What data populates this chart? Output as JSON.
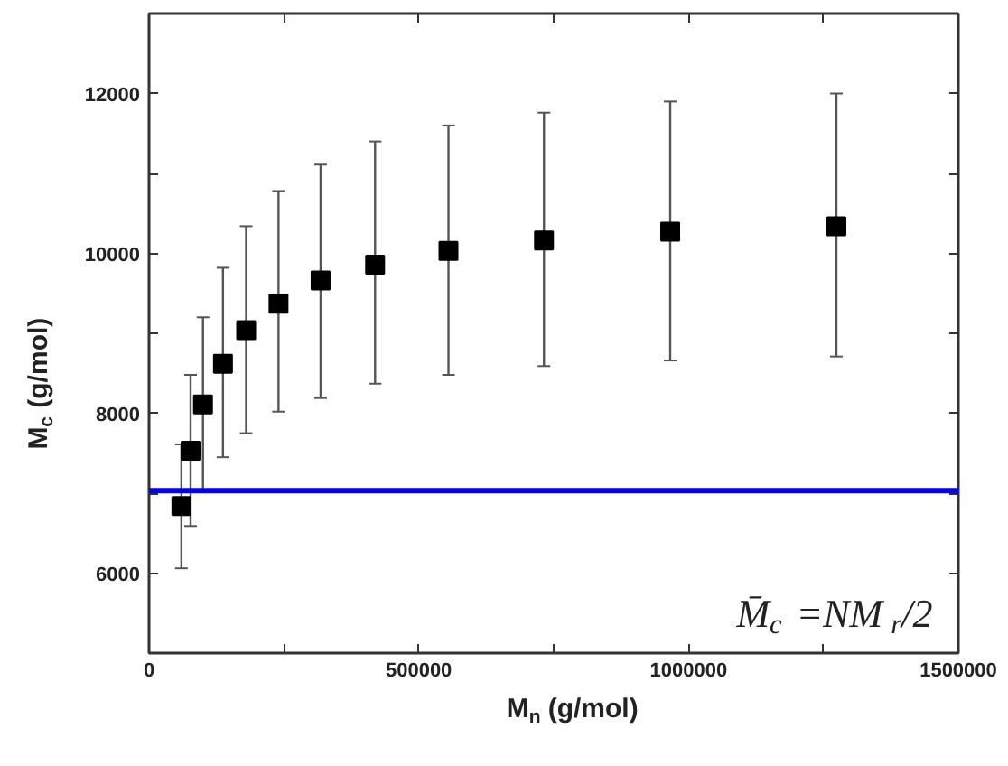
{
  "chart_data": {
    "type": "scatter",
    "xlabel": "M$_{n}$ (g/mol)",
    "ylabel": "M$_{c}$ (g/mol)",
    "x": [
      60000,
      77000,
      100000,
      137000,
      180000,
      240000,
      318000,
      419000,
      555000,
      732000,
      966000,
      1274000
    ],
    "values": [
      6840,
      7530,
      8110,
      8620,
      9040,
      9370,
      9660,
      9860,
      10030,
      10160,
      10270,
      10340
    ],
    "errors": [
      [
        6060,
        7610
      ],
      [
        6590,
        8480
      ],
      [
        7040,
        9200
      ],
      [
        7450,
        9820
      ],
      [
        7750,
        10340
      ],
      [
        8020,
        10780
      ],
      [
        8190,
        11110
      ],
      [
        8370,
        11400
      ],
      [
        8480,
        11600
      ],
      [
        8590,
        11760
      ],
      [
        8660,
        11900
      ],
      [
        8710,
        12000
      ]
    ],
    "color": "#000000",
    "marker": "square",
    "xlim": [
      0,
      1500000
    ],
    "ylim": [
      5000,
      13000
    ],
    "xticks": [
      0,
      {
        "value": 250000,
        "label": null
      },
      500000,
      {
        "value": 750000,
        "label": null
      },
      1000000,
      {
        "value": 1250000,
        "label": null
      },
      1500000
    ],
    "yticks": [
      6000,
      {
        "value": 7000,
        "label": null
      },
      8000,
      {
        "value": 9000,
        "label": null
      },
      10000,
      {
        "value": 11000,
        "label": null
      },
      12000
    ],
    "ref_lines": [
      {
        "axis": "y",
        "value": 7030,
        "color": "#0000ee",
        "label": null
      }
    ],
    "annotations": [
      "M̄$_{c}$=NM$_{r}$/2"
    ],
    "grid": false
  }
}
